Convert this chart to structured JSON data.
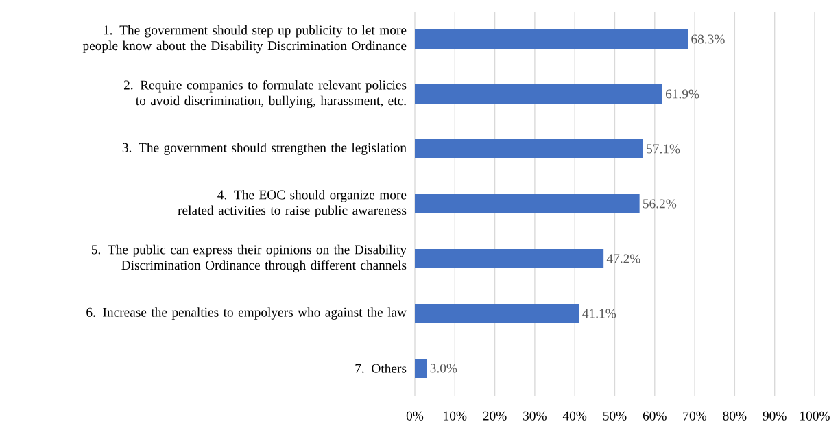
{
  "chart_data": {
    "type": "bar",
    "orientation": "horizontal",
    "categories": [
      "1. The government should step up publicity to let more people know about the Disability Discrimination Ordinance",
      "2. Require companies to formulate relevant policies to avoid discrimination, bullying, harassment, etc.",
      "3. The government should strengthen the legislation",
      "4. The EOC should organize more related activities to raise public awareness",
      "5. The public can express their opinions on the Disability Discrimination Ordinance through different channels",
      "6. Increase the penalties to empolyers who against the law",
      "7. Others"
    ],
    "values": [
      68.3,
      61.9,
      57.1,
      56.2,
      47.2,
      41.1,
      3.0
    ],
    "value_labels": [
      "68.3%",
      "61.9%",
      "57.1%",
      "56.2%",
      "47.2%",
      "41.1%",
      "3.0%"
    ],
    "color": "#4472c4",
    "xlim": [
      0,
      100
    ],
    "xticks": [
      {
        "value": 0,
        "label": "0%"
      },
      {
        "value": 10,
        "label": "10%"
      },
      {
        "value": 20,
        "label": "20%"
      },
      {
        "value": 30,
        "label": "30%"
      },
      {
        "value": 40,
        "label": "40%"
      },
      {
        "value": 50,
        "label": "50%"
      },
      {
        "value": 60,
        "label": "60%"
      },
      {
        "value": 70,
        "label": "70%"
      },
      {
        "value": 80,
        "label": "80%"
      },
      {
        "value": 90,
        "label": "90%"
      },
      {
        "value": 100,
        "label": "100%"
      }
    ],
    "grid": "x"
  }
}
